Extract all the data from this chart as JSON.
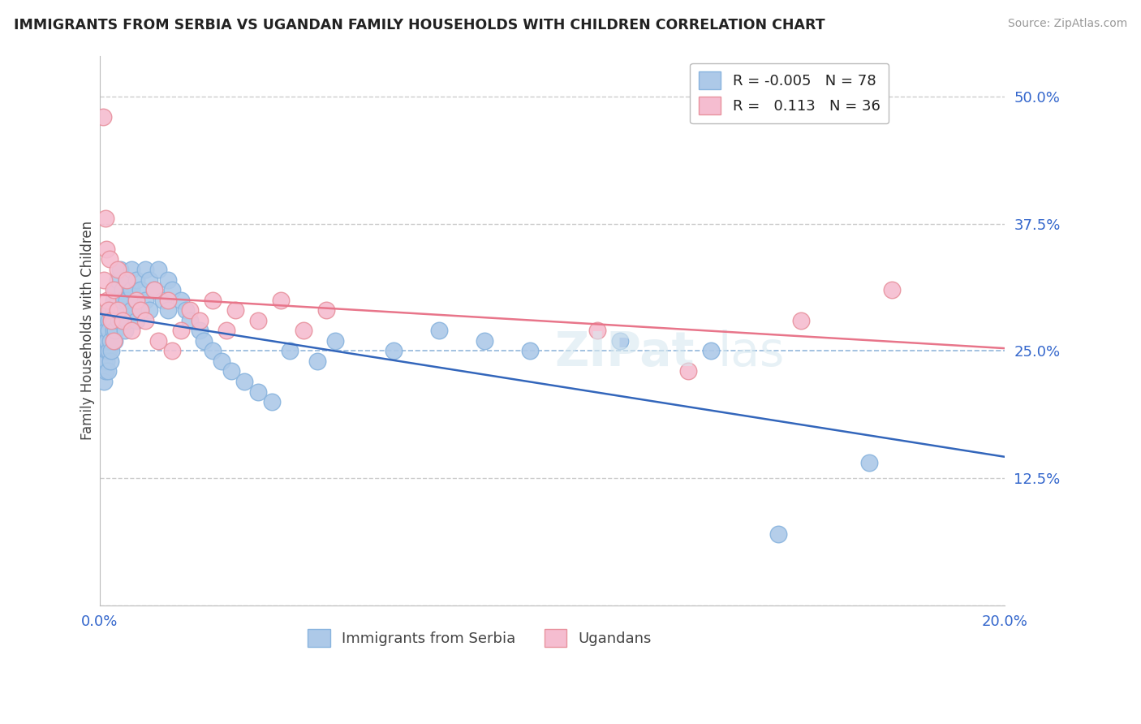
{
  "title": "IMMIGRANTS FROM SERBIA VS UGANDAN FAMILY HOUSEHOLDS WITH CHILDREN CORRELATION CHART",
  "source": "Source: ZipAtlas.com",
  "ylabel": "Family Households with Children",
  "xlim": [
    0.0,
    0.2
  ],
  "ylim": [
    0.0,
    0.54
  ],
  "yticks": [
    0.0,
    0.125,
    0.25,
    0.375,
    0.5
  ],
  "ytick_labels": [
    "",
    "12.5%",
    "25.0%",
    "37.5%",
    "50.0%"
  ],
  "xticks": [
    0.0,
    0.05,
    0.1,
    0.15,
    0.2
  ],
  "xtick_labels": [
    "0.0%",
    "",
    "",
    "",
    "20.0%"
  ],
  "legend_labels": [
    "Immigrants from Serbia",
    "Ugandans"
  ],
  "R_serbia": -0.005,
  "N_serbia": 78,
  "R_ugandan": 0.113,
  "N_ugandan": 36,
  "blue_fill": "#adc9e8",
  "blue_edge": "#89b4de",
  "blue_line": "#3366bb",
  "pink_fill": "#f5bdd0",
  "pink_edge": "#e8929e",
  "pink_line": "#e8758a",
  "serbia_x": [
    0.0008,
    0.0009,
    0.001,
    0.001,
    0.0012,
    0.0013,
    0.0014,
    0.0015,
    0.0016,
    0.0017,
    0.0018,
    0.002,
    0.002,
    0.002,
    0.0022,
    0.0023,
    0.0024,
    0.0025,
    0.0026,
    0.003,
    0.003,
    0.003,
    0.003,
    0.0032,
    0.0034,
    0.0035,
    0.004,
    0.004,
    0.004,
    0.0042,
    0.0045,
    0.005,
    0.005,
    0.005,
    0.0055,
    0.006,
    0.006,
    0.006,
    0.007,
    0.007,
    0.007,
    0.008,
    0.008,
    0.008,
    0.009,
    0.009,
    0.01,
    0.01,
    0.011,
    0.011,
    0.012,
    0.013,
    0.014,
    0.015,
    0.015,
    0.016,
    0.018,
    0.019,
    0.02,
    0.022,
    0.023,
    0.025,
    0.027,
    0.029,
    0.032,
    0.035,
    0.038,
    0.042,
    0.048,
    0.052,
    0.065,
    0.075,
    0.085,
    0.095,
    0.115,
    0.135,
    0.15,
    0.17
  ],
  "serbia_y": [
    0.26,
    0.24,
    0.28,
    0.22,
    0.25,
    0.23,
    0.27,
    0.24,
    0.25,
    0.26,
    0.23,
    0.28,
    0.27,
    0.25,
    0.29,
    0.24,
    0.26,
    0.28,
    0.25,
    0.3,
    0.28,
    0.27,
    0.29,
    0.26,
    0.31,
    0.27,
    0.32,
    0.29,
    0.3,
    0.28,
    0.33,
    0.31,
    0.29,
    0.3,
    0.27,
    0.32,
    0.3,
    0.28,
    0.33,
    0.31,
    0.29,
    0.32,
    0.3,
    0.28,
    0.31,
    0.29,
    0.33,
    0.3,
    0.32,
    0.29,
    0.31,
    0.33,
    0.3,
    0.32,
    0.29,
    0.31,
    0.3,
    0.29,
    0.28,
    0.27,
    0.26,
    0.25,
    0.24,
    0.23,
    0.22,
    0.21,
    0.2,
    0.25,
    0.24,
    0.26,
    0.25,
    0.27,
    0.26,
    0.25,
    0.26,
    0.25,
    0.07,
    0.14
  ],
  "ugandan_x": [
    0.0008,
    0.001,
    0.0012,
    0.0015,
    0.0017,
    0.002,
    0.0022,
    0.0025,
    0.003,
    0.003,
    0.004,
    0.004,
    0.005,
    0.006,
    0.007,
    0.008,
    0.009,
    0.01,
    0.012,
    0.013,
    0.015,
    0.016,
    0.018,
    0.02,
    0.022,
    0.025,
    0.028,
    0.03,
    0.035,
    0.04,
    0.045,
    0.05,
    0.11,
    0.13,
    0.155,
    0.175
  ],
  "ugandan_y": [
    0.48,
    0.32,
    0.38,
    0.35,
    0.3,
    0.29,
    0.34,
    0.28,
    0.31,
    0.26,
    0.33,
    0.29,
    0.28,
    0.32,
    0.27,
    0.3,
    0.29,
    0.28,
    0.31,
    0.26,
    0.3,
    0.25,
    0.27,
    0.29,
    0.28,
    0.3,
    0.27,
    0.29,
    0.28,
    0.3,
    0.27,
    0.29,
    0.27,
    0.23,
    0.28,
    0.31
  ]
}
